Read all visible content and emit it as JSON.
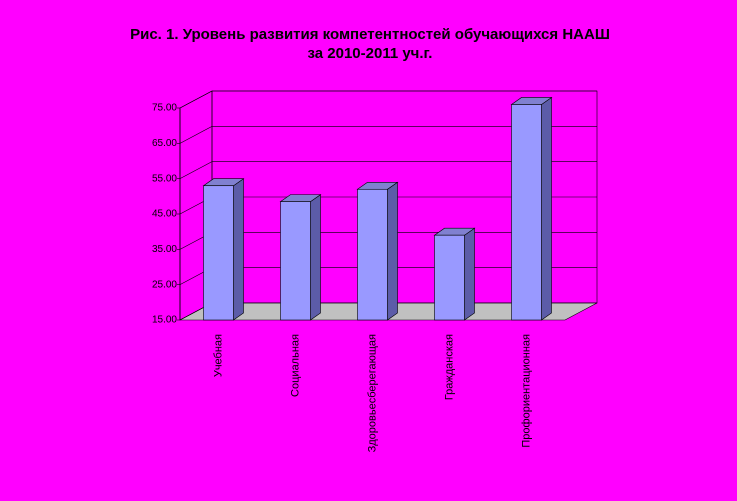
{
  "chart_data": {
    "type": "bar",
    "title": [
      "Рис. 1. Уровень развития компетентностей обучающихся НААШ",
      "за 2010-2011 уч.г."
    ],
    "categories": [
      "Учебная",
      "Социальная",
      "Здоровьесберегающая",
      "Гражданская",
      "Профориентационная"
    ],
    "values": [
      53,
      48.5,
      52,
      39,
      76
    ],
    "color": "#9999ff",
    "ylim": [
      15,
      75
    ],
    "yticks": [
      {
        "value": 15,
        "label": "15.00"
      },
      {
        "value": 25,
        "label": "25.00"
      },
      {
        "value": 35,
        "label": "35.00"
      },
      {
        "value": 45,
        "label": "45.00"
      },
      {
        "value": 55,
        "label": "55.00"
      },
      {
        "value": 65,
        "label": "65.00"
      },
      {
        "value": 75,
        "label": "75.00"
      }
    ],
    "grid": true
  }
}
